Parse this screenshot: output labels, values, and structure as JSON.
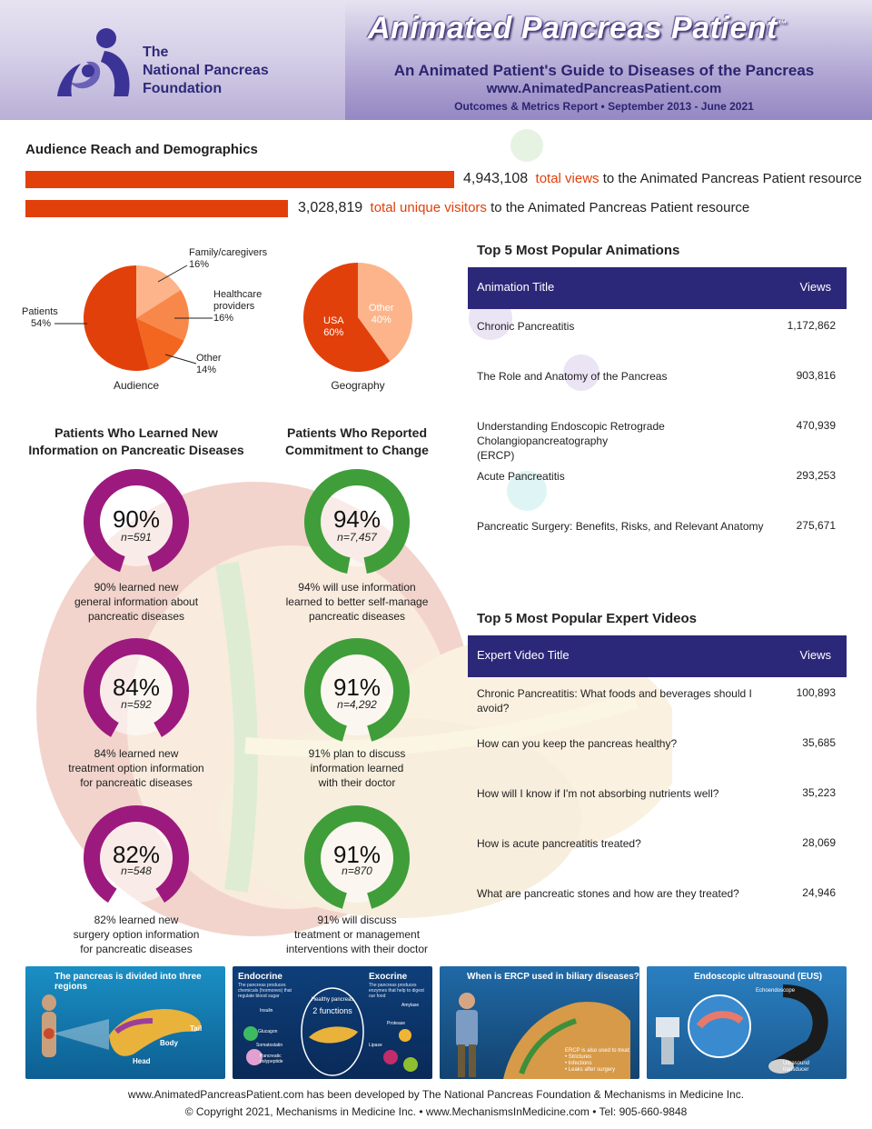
{
  "header": {
    "title": "Animated Pancreas Patient",
    "trademark": "™",
    "subtitle": "An Animated Patient's Guide to Diseases of the Pancreas",
    "url": "www.AnimatedPancreasPatient.com",
    "report": "Outcomes & Metrics Report • September 2013 - June 2021",
    "logo_line1": "The",
    "logo_line2": "National Pancreas",
    "logo_line3": "Foundation"
  },
  "audience": {
    "heading": "Audience Reach and Demographics",
    "views_number": "4,943,108",
    "views_highlight": "total views",
    "views_rest": "to the Animated Pancreas Patient resource",
    "unique_number": "3,028,819",
    "unique_highlight": "total unique visitors",
    "unique_rest": "to the Animated Pancreas Patient resource",
    "views_fraction": 1.0,
    "unique_fraction": 0.6125
  },
  "pies": {
    "audience": {
      "caption": "Audience",
      "slices": [
        {
          "label": "Patients",
          "pct": "54%",
          "value": 54,
          "color": "#e2400b"
        },
        {
          "label": "Family/caregivers",
          "pct": "16%",
          "value": 16,
          "color": "#fdb48a"
        },
        {
          "label": "Healthcare providers",
          "label_l1": "Healthcare",
          "label_l2": "providers",
          "pct": "16%",
          "value": 16,
          "color": "#f8884a"
        },
        {
          "label": "Other",
          "pct": "14%",
          "value": 14,
          "color": "#f2661f"
        }
      ]
    },
    "geography": {
      "caption": "Geography",
      "slices": [
        {
          "label": "USA",
          "pct": "60%",
          "value": 60,
          "color": "#e2400b"
        },
        {
          "label": "Other",
          "pct": "40%",
          "value": 40,
          "color": "#fdb48a"
        }
      ]
    }
  },
  "learned": {
    "heading_l1": "Patients Who Learned New",
    "heading_l2": "Information on Pancreatic Diseases",
    "color": "#9c1a7d",
    "items": [
      {
        "pct": "90%",
        "value": 90,
        "n": "n=591",
        "desc_l1": "90% learned new",
        "desc_l2": "general information about",
        "desc_l3": "pancreatic diseases"
      },
      {
        "pct": "84%",
        "value": 84,
        "n": "n=592",
        "desc_l1": "84% learned new",
        "desc_l2": "treatment option information",
        "desc_l3": "for pancreatic diseases"
      },
      {
        "pct": "82%",
        "value": 82,
        "n": "n=548",
        "desc_l1": "82% learned new",
        "desc_l2": "surgery option information",
        "desc_l3": "for pancreatic diseases"
      }
    ]
  },
  "commitment": {
    "heading_l1": "Patients Who Reported",
    "heading_l2": "Commitment to Change",
    "color": "#3f9e3a",
    "items": [
      {
        "pct": "94%",
        "value": 94,
        "n": "n=7,457",
        "desc_l1": "94% will use information",
        "desc_l2": "learned to better self-manage",
        "desc_l3": "pancreatic diseases"
      },
      {
        "pct": "91%",
        "value": 91,
        "n": "n=4,292",
        "desc_l1": "91% plan to discuss",
        "desc_l2": "information learned",
        "desc_l3": "with their doctor"
      },
      {
        "pct": "91%",
        "value": 91,
        "n": "n=870",
        "desc_l1": "91% will discuss",
        "desc_l2": "treatment or management",
        "desc_l3": "interventions with their doctor"
      }
    ]
  },
  "animations": {
    "heading": "Top 5 Most Popular Animations",
    "col_title": "Animation Title",
    "col_views": "Views",
    "rows": [
      {
        "title": "Chronic Pancreatitis",
        "views": "1,172,862"
      },
      {
        "title": "The Role and Anatomy of the Pancreas",
        "views": "903,816"
      },
      {
        "title": "Understanding Endoscopic Retrograde Cholangiopancreatography",
        "title2": "(ERCP)",
        "views": "470,939"
      },
      {
        "title": "Acute Pancreatitis",
        "views": "293,253"
      },
      {
        "title": "Pancreatic Surgery: Benefits, Risks, and Relevant Anatomy",
        "views": "275,671"
      }
    ]
  },
  "videos": {
    "heading": "Top 5 Most Popular Expert Videos",
    "col_title": "Expert Video Title",
    "col_views": "Views",
    "rows": [
      {
        "title": "Chronic Pancreatitis: What foods and beverages should I avoid?",
        "views": "100,893"
      },
      {
        "title": "How can you keep the pancreas healthy?",
        "views": "35,685"
      },
      {
        "title": "How will I know if I'm not absorbing nutrients well?",
        "views": "35,223"
      },
      {
        "title": "How is acute pancreatitis treated?",
        "views": "28,069"
      },
      {
        "title": "What are pancreatic stones and how are they treated?",
        "views": "24,946"
      }
    ]
  },
  "tiles": {
    "t1": {
      "title": "The pancreas is divided into three regions",
      "tail": "Tail",
      "body": "Body",
      "head": "Head"
    },
    "t2": {
      "endocrine": "Endocrine",
      "exocrine": "Exocrine",
      "endo_desc": "The pancreas produces chemicals (hormones) that regulate blood sugar",
      "exo_desc": "The pancreas produces enzymes that help to digest our food",
      "center_l1": "Healthy pancreas",
      "center_l2": "2 functions",
      "insulin": "Insulin",
      "glucagon": "Glucagon",
      "somatostatin": "Somatostatin",
      "polypeptide_l1": "Pancreatic",
      "polypeptide_l2": "polypeptide",
      "amylase": "Amylase",
      "protease": "Protease",
      "lipase": "Lipase"
    },
    "t3": {
      "title": "When is ERCP used in biliary diseases?",
      "also": "ERCP is also used to treat:",
      "b1": "• Strictures",
      "b2": "• Infections",
      "b3": "• Leaks after surgery"
    },
    "t4": {
      "title": "Endoscopic ultrasound (EUS)",
      "echo": "Echoendoscope",
      "trans_l1": "Ultrasound",
      "trans_l2": "transducer"
    }
  },
  "footer": {
    "line1": "www.AnimatedPancreasPatient.com has been developed by The National Pancreas Foundation & Mechanisms in Medicine Inc.",
    "line2": "© Copyright 2021, Mechanisms in Medicine Inc. • www.MechanismsInMedicine.com • Tel: 905-660-9848"
  }
}
